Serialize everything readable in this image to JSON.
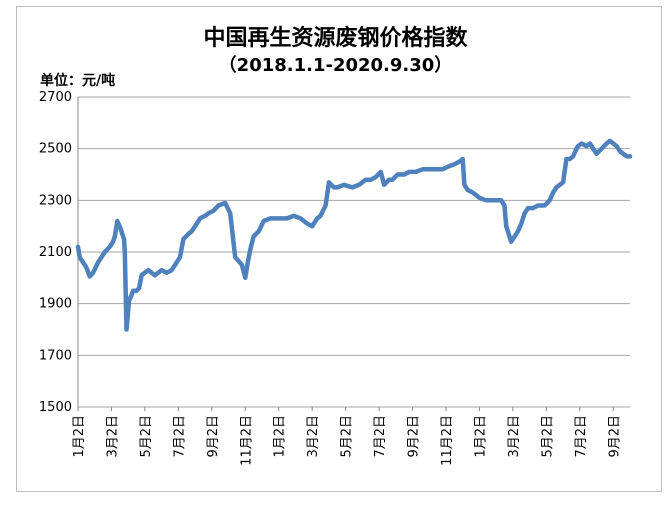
{
  "chart_data": {
    "type": "line",
    "title": "中国再生资源废钢价格指数",
    "subtitle": "（2018.1.1-2020.9.30）",
    "unit_label": "单位：元/吨",
    "ylim": [
      1500,
      2700
    ],
    "yticks": [
      1500,
      1700,
      1900,
      2100,
      2300,
      2500,
      2700
    ],
    "xlim": [
      0,
      33
    ],
    "x_tick_labels": [
      "1月2日",
      "3月2日",
      "5月2日",
      "7月2日",
      "9月2日",
      "11月2日",
      "1月2日",
      "3月2日",
      "5月2日",
      "7月2日",
      "9月2日",
      "11月2日",
      "1月2日",
      "3月2日",
      "5月2日",
      "7月2日",
      "9月2日"
    ],
    "grid": "horizontal",
    "line_color": "#4f81bd",
    "x": [
      0,
      0.1,
      0.3,
      0.5,
      0.7,
      0.9,
      1.2,
      1.6,
      1.9,
      2.0,
      2.1,
      2.2,
      2.35,
      2.55,
      2.65,
      2.75,
      2.8,
      2.9,
      3.05,
      3.3,
      3.5,
      3.65,
      3.8,
      4.0,
      4.2,
      4.4,
      4.6,
      4.8,
      5.0,
      5.3,
      5.6,
      5.8,
      6.1,
      6.3,
      6.6,
      6.8,
      7.0,
      7.3,
      7.6,
      7.8,
      8.1,
      8.4,
      8.8,
      9.1,
      9.4,
      9.8,
      10.0,
      10.15,
      10.3,
      10.5,
      10.8,
      11.1,
      11.5,
      12.0,
      12.5,
      12.9,
      13.3,
      13.7,
      14.0,
      14.3,
      14.5,
      14.8,
      15.0,
      15.3,
      15.5,
      15.9,
      16.4,
      16.8,
      17.2,
      17.5,
      17.8,
      18.1,
      18.3,
      18.6,
      18.8,
      19.1,
      19.5,
      19.8,
      20.2,
      20.6,
      21.0,
      21.4,
      21.8,
      22.1,
      22.5,
      22.8,
      23.0,
      23.1,
      23.3,
      23.6,
      24.0,
      24.4,
      24.8,
      25.3,
      25.5,
      25.6,
      25.75,
      25.9,
      26.1,
      26.3,
      26.5,
      26.7,
      26.9,
      27.2,
      27.5,
      27.9,
      28.2,
      28.4,
      28.6,
      28.8,
      29.0,
      29.2,
      29.4,
      29.6,
      29.8,
      29.9,
      30.1,
      30.4,
      30.6,
      30.8,
      31.0,
      31.3,
      31.6,
      31.8,
      32.0,
      32.2,
      32.4,
      32.6,
      32.8,
      33.0
    ],
    "y": [
      2120,
      2080,
      2060,
      2040,
      2005,
      2020,
      2060,
      2100,
      2120,
      2130,
      2140,
      2160,
      2220,
      2190,
      2170,
      2150,
      2100,
      1800,
      1910,
      1950,
      1950,
      1960,
      2010,
      2020,
      2030,
      2020,
      2010,
      2020,
      2030,
      2020,
      2030,
      2050,
      2080,
      2150,
      2170,
      2180,
      2200,
      2230,
      2240,
      2250,
      2260,
      2280,
      2290,
      2250,
      2080,
      2050,
      2000,
      2060,
      2110,
      2160,
      2180,
      2220,
      2230,
      2230,
      2230,
      2240,
      2230,
      2210,
      2200,
      2230,
      2240,
      2280,
      2370,
      2350,
      2350,
      2360,
      2350,
      2360,
      2380,
      2380,
      2390,
      2410,
      2360,
      2380,
      2380,
      2400,
      2400,
      2410,
      2410,
      2420,
      2420,
      2420,
      2420,
      2430,
      2440,
      2450,
      2460,
      2360,
      2340,
      2330,
      2310,
      2300,
      2300,
      2300,
      2280,
      2200,
      2170,
      2140,
      2160,
      2180,
      2210,
      2250,
      2270,
      2270,
      2280,
      2280,
      2300,
      2330,
      2350,
      2360,
      2370,
      2460,
      2460,
      2470,
      2500,
      2510,
      2520,
      2510,
      2520,
      2500,
      2480,
      2500,
      2520,
      2530,
      2520,
      2510,
      2490,
      2480,
      2470,
      2470
    ]
  }
}
